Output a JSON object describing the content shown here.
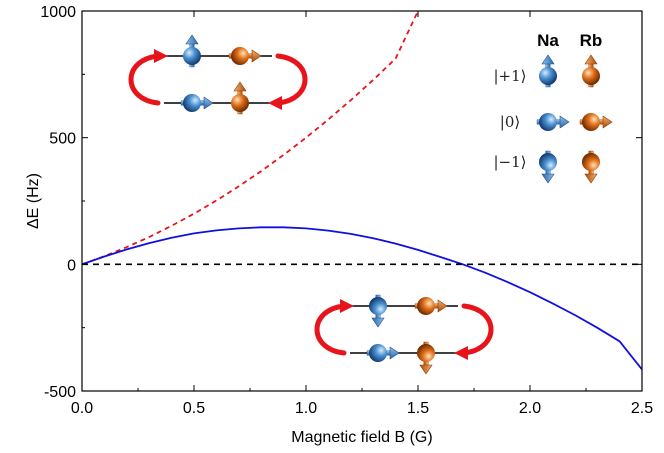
{
  "chart_data": {
    "type": "line",
    "xlabel": "Magnetic field B (G)",
    "ylabel": "ΔE (Hz)",
    "xlim": [
      0.0,
      2.5
    ],
    "ylim": [
      -500,
      1000
    ],
    "x_ticks": [
      0.0,
      0.5,
      1.0,
      1.5,
      2.0,
      2.5
    ],
    "x_tick_labels": [
      "0.0",
      "0.5",
      "1.0",
      "1.5",
      "2.0",
      "2.5"
    ],
    "y_ticks": [
      -500,
      0,
      500,
      1000
    ],
    "y_tick_labels": [
      "-500",
      "0",
      "500",
      "1000"
    ],
    "grid": false,
    "series": [
      {
        "name": "dashed-red",
        "style": "dashed",
        "color": "#e8141c",
        "x": [
          0.0,
          0.1,
          0.2,
          0.3,
          0.4,
          0.5,
          0.6,
          0.7,
          0.8,
          0.9,
          1.0,
          1.1,
          1.2,
          1.3,
          1.4,
          1.5
        ],
        "values": [
          0,
          32,
          68,
          108,
          152,
          200,
          252,
          308,
          368,
          432,
          500,
          572,
          648,
          728,
          812,
          1000
        ]
      },
      {
        "name": "solid-blue",
        "style": "solid",
        "color": "#1010e0",
        "x": [
          0.0,
          0.1,
          0.2,
          0.3,
          0.4,
          0.5,
          0.6,
          0.7,
          0.8,
          0.9,
          1.0,
          1.1,
          1.2,
          1.3,
          1.4,
          1.5,
          1.6,
          1.7,
          1.8,
          1.9,
          2.0,
          2.1,
          2.2,
          2.3,
          2.4,
          2.5
        ],
        "values": [
          0,
          31,
          59,
          84,
          105,
          122,
          134,
          142,
          146,
          146,
          142,
          133,
          120,
          103,
          82,
          57,
          29,
          0,
          -33,
          -70,
          -110,
          -154,
          -200,
          -250,
          -304,
          -415
        ]
      },
      {
        "name": "zero-reference",
        "style": "dashed",
        "color": "#000000",
        "x": [
          0.0,
          2.5
        ],
        "values": [
          0,
          0
        ]
      }
    ],
    "legend": {
      "placement": "top-right",
      "columns": [
        "Na",
        "Rb"
      ],
      "rows": [
        {
          "label": "|+1⟩",
          "spin": "up"
        },
        {
          "label": "|0⟩",
          "spin": "right"
        },
        {
          "label": "|−1⟩",
          "spin": "down"
        }
      ]
    },
    "insets": [
      {
        "name": "upper-exchange",
        "anchor": "top-left",
        "states": [
          [
            "up",
            "right"
          ],
          [
            "right",
            "up"
          ]
        ],
        "arrow_color": "#e8141c"
      },
      {
        "name": "lower-exchange",
        "anchor": "bottom-middle",
        "states": [
          [
            "down",
            "right"
          ],
          [
            "right",
            "down"
          ]
        ],
        "arrow_color": "#e8141c"
      }
    ],
    "colors": {
      "na": "#4a90d0",
      "rb": "#e0701a",
      "exchange_arrow": "#e8141c"
    }
  }
}
